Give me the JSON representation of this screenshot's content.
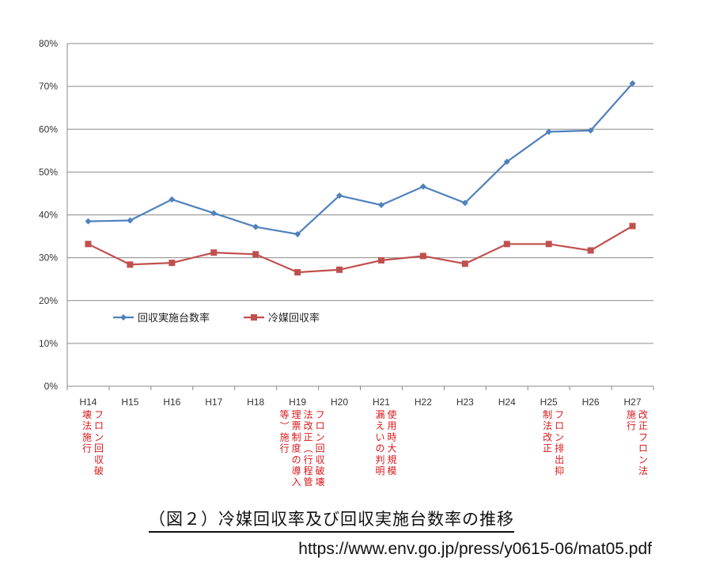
{
  "chart_data": {
    "type": "line",
    "categories": [
      "H14",
      "H15",
      "H16",
      "H17",
      "H18",
      "H19",
      "H20",
      "H21",
      "H22",
      "H23",
      "H24",
      "H25",
      "H26",
      "H27"
    ],
    "y_tick_labels": [
      "0%",
      "10%",
      "20%",
      "30%",
      "40%",
      "50%",
      "60%",
      "70%",
      "80%"
    ],
    "ylim": [
      0,
      80
    ],
    "grid": true,
    "legend_position": "left-middle",
    "series": [
      {
        "name": "回収実施台数率",
        "color": "#4f81bd",
        "marker": "diamond",
        "values": [
          38.5,
          38.7,
          43.6,
          40.4,
          37.2,
          35.5,
          44.5,
          42.3,
          46.6,
          42.8,
          52.4,
          59.4,
          59.7,
          70.7
        ]
      },
      {
        "name": "冷媒回収率",
        "color": "#c0504d",
        "marker": "square",
        "values": [
          33.2,
          28.4,
          28.8,
          31.2,
          30.8,
          26.6,
          27.2,
          29.4,
          30.4,
          28.6,
          33.2,
          33.2,
          31.7,
          37.4
        ]
      }
    ],
    "annotations": [
      {
        "category": "H14",
        "lines": [
          "フロン回収破",
          "壊法施行"
        ]
      },
      {
        "category": "H19",
        "lines": [
          "フロン回収破壊",
          "法改正（行程管",
          "理票制度の導入",
          "等）施行"
        ]
      },
      {
        "category": "H21",
        "lines": [
          "使用時大規模",
          "漏えいの判明"
        ]
      },
      {
        "category": "H25",
        "lines": [
          "フロン排出抑",
          "制法改正"
        ]
      },
      {
        "category": "H27",
        "lines": [
          "改正フロン法",
          "施行"
        ]
      }
    ]
  },
  "caption": "（図２）冷媒回収率及び回収実施台数率の推移",
  "source_url": "https://www.env.go.jp/press/y0615-06/mat05.pdf"
}
